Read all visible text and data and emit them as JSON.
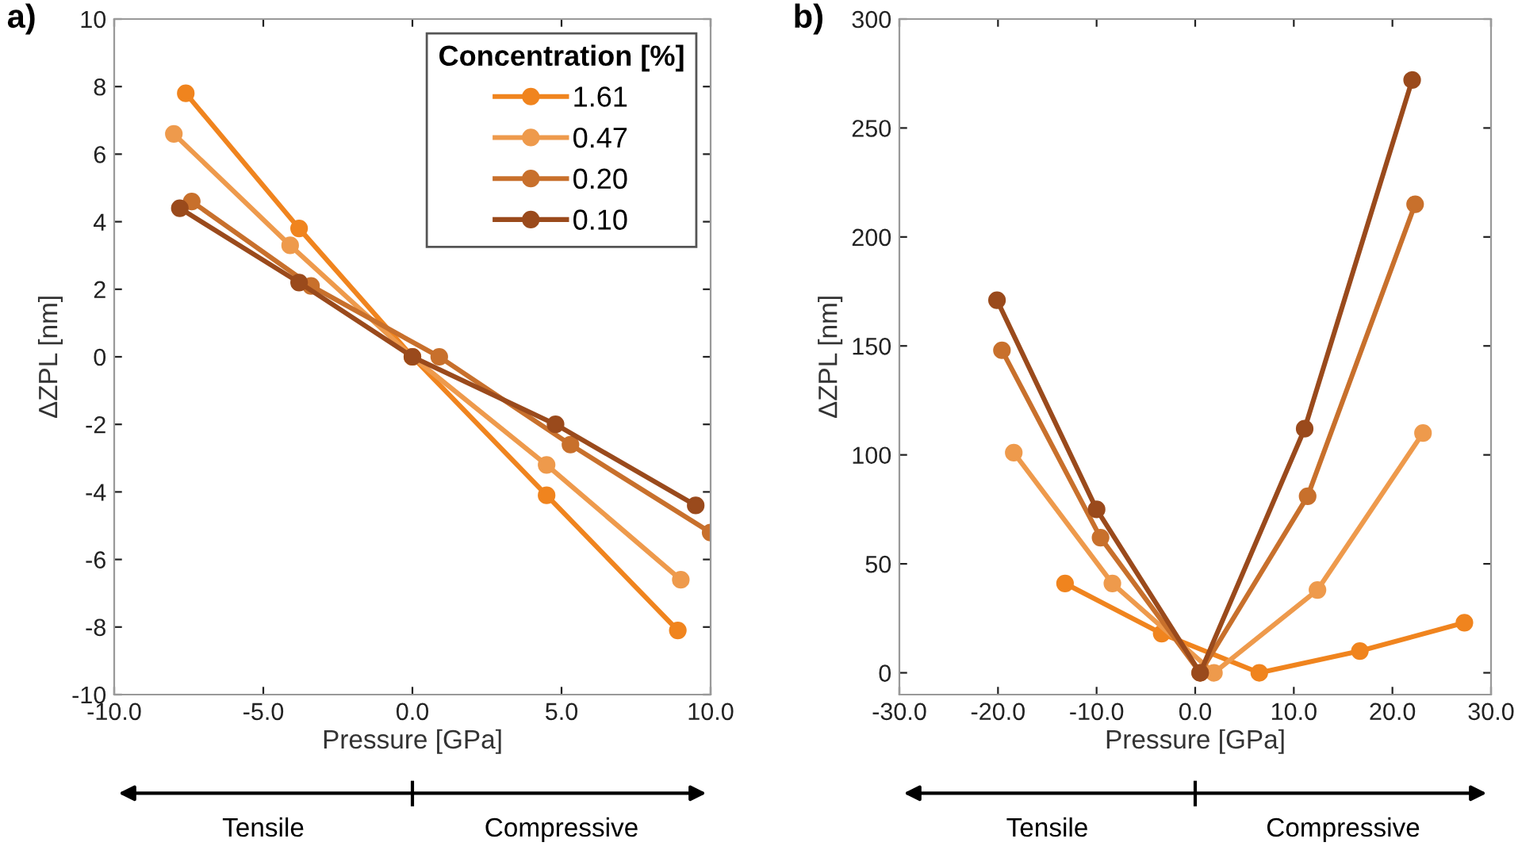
{
  "chart_data": [
    {
      "type": "line",
      "xlabel": "Pressure [GPa]",
      "ylabel": "ΔZPL [nm]",
      "legend_title": "Concentration [%]",
      "legend": "top right",
      "marker": "circle",
      "line_style": "solid",
      "grid": false,
      "xlim": [
        -10,
        10
      ],
      "xticks": [
        {
          "value": -10,
          "label": "-10.0"
        },
        {
          "value": -5,
          "label": "-5.0"
        },
        {
          "value": 0,
          "label": "0.0"
        },
        {
          "value": 5,
          "label": "5.0"
        },
        {
          "value": 10,
          "label": "10.0"
        }
      ],
      "ylim": [
        -10,
        10
      ],
      "yticks": [
        -10,
        -8,
        -6,
        -4,
        -2,
        0,
        2,
        4,
        6,
        8,
        10
      ],
      "annotations": [
        "a)",
        "Tensile",
        "Compressive"
      ],
      "series": [
        {
          "name": "1.61",
          "color": "#f0841e",
          "x": [
            -7.6,
            -3.8,
            0,
            4.5,
            8.9
          ],
          "values": [
            7.8,
            3.8,
            0,
            -4.1,
            -8.1
          ]
        },
        {
          "name": "0.47",
          "color": "#ee9a4c",
          "x": [
            -8.0,
            -4.1,
            0,
            4.5,
            9.0
          ],
          "values": [
            6.6,
            3.3,
            0,
            -3.2,
            -6.6
          ]
        },
        {
          "name": "0.20",
          "color": "#c8702c",
          "x": [
            -7.4,
            -3.4,
            0.9,
            5.3,
            10.0
          ],
          "values": [
            4.6,
            2.1,
            0,
            -2.6,
            -5.2
          ]
        },
        {
          "name": "0.10",
          "color": "#9a4a1c",
          "x": [
            -7.8,
            -3.8,
            0,
            4.8,
            9.5
          ],
          "values": [
            4.4,
            2.2,
            0,
            -2.0,
            -4.4
          ]
        }
      ]
    },
    {
      "type": "line",
      "xlabel": "Pressure [GPa]",
      "ylabel": "ΔZPL [nm]",
      "marker": "circle",
      "line_style": "solid",
      "grid": false,
      "xlim": [
        -30,
        30
      ],
      "xticks": [
        {
          "value": -30,
          "label": "-30.0"
        },
        {
          "value": -20,
          "label": "-20.0"
        },
        {
          "value": -10,
          "label": "-10.0"
        },
        {
          "value": 0,
          "label": "0.0"
        },
        {
          "value": 10,
          "label": "10.0"
        },
        {
          "value": 20,
          "label": "20.0"
        },
        {
          "value": 30,
          "label": "30.0"
        }
      ],
      "ylim": [
        -10,
        300
      ],
      "yticks": [
        0,
        50,
        100,
        150,
        200,
        250,
        300
      ],
      "annotations": [
        "b)",
        "Tensile",
        "Compressive"
      ],
      "series": [
        {
          "color": "#f0841e",
          "x": [
            -13.2,
            -3.4,
            6.5,
            16.7,
            27.3
          ],
          "values": [
            41,
            18,
            0,
            10,
            23
          ]
        },
        {
          "color": "#ee9a4c",
          "x": [
            -18.4,
            -8.4,
            1.9,
            12.4,
            23.1
          ],
          "values": [
            101,
            41,
            0,
            38,
            110
          ]
        },
        {
          "color": "#c8702c",
          "x": [
            -19.6,
            -9.6,
            0.5,
            11.4,
            22.3
          ],
          "values": [
            148,
            62,
            0,
            81,
            215
          ]
        },
        {
          "color": "#9a4a1c",
          "x": [
            -20.1,
            -10.0,
            0.5,
            11.1,
            22.0
          ],
          "values": [
            171,
            75,
            0,
            112,
            272
          ]
        }
      ]
    }
  ]
}
